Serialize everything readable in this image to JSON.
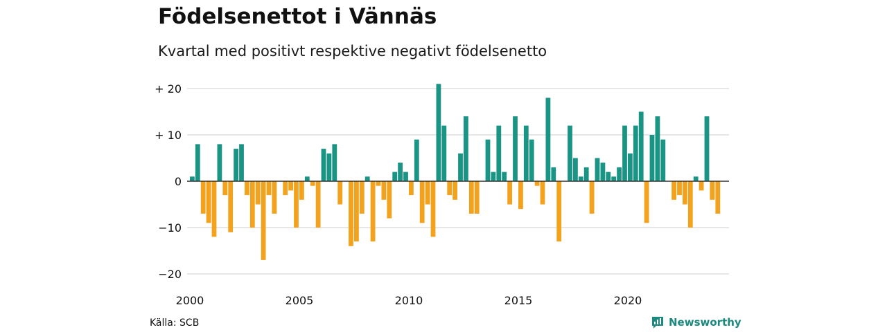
{
  "title": "Födelsenettot i Vännäs",
  "subtitle": "Kvartal med positivt respektive negativt födelsenetto",
  "source": "Källa: SCB",
  "brand": {
    "name": "Newsworthy",
    "icon": "newsworthy-logo-icon"
  },
  "colors": {
    "positive": "#1a9485",
    "negative": "#f2a21d",
    "grid": "#dddddd",
    "zero": "#333333"
  },
  "chart_data": {
    "type": "bar",
    "title": "Födelsenettot i Vännäs",
    "subtitle": "Kvartal med positivt respektive negativt födelsenetto",
    "xlabel": "",
    "ylabel": "",
    "ylim": [
      -22,
      22
    ],
    "y_ticks": [
      20,
      10,
      0,
      -10,
      -20
    ],
    "y_tick_labels": [
      "+ 20",
      "+ 10",
      "0",
      "−10",
      "−20"
    ],
    "x_ticks": [
      2000,
      2005,
      2010,
      2015,
      2020
    ],
    "x_tick_labels": [
      "2000",
      "2005",
      "2010",
      "2015",
      "2020"
    ],
    "grid": true,
    "start_year": 2000,
    "start_quarter": 1,
    "values": [
      1,
      8,
      -7,
      -9,
      -12,
      8,
      -3,
      -11,
      7,
      8,
      -3,
      -10,
      -5,
      -17,
      -3,
      -7,
      0,
      -3,
      -2,
      -10,
      -4,
      1,
      -1,
      -10,
      7,
      6,
      8,
      -5,
      0,
      -14,
      -13,
      -7,
      1,
      -13,
      -1,
      -4,
      -8,
      2,
      4,
      2,
      -3,
      9,
      -9,
      -5,
      -12,
      21,
      12,
      -3,
      -4,
      6,
      14,
      -7,
      -7,
      0,
      9,
      2,
      12,
      2,
      -5,
      14,
      -6,
      12,
      9,
      -1,
      -5,
      18,
      3,
      -13,
      0,
      12,
      5,
      1,
      3,
      -7,
      5,
      4,
      2,
      1,
      3,
      12,
      6,
      12,
      15,
      -9,
      10,
      14,
      9,
      0,
      -4,
      -3,
      -5,
      -10,
      1,
      -2,
      14,
      -4,
      -7
    ]
  }
}
